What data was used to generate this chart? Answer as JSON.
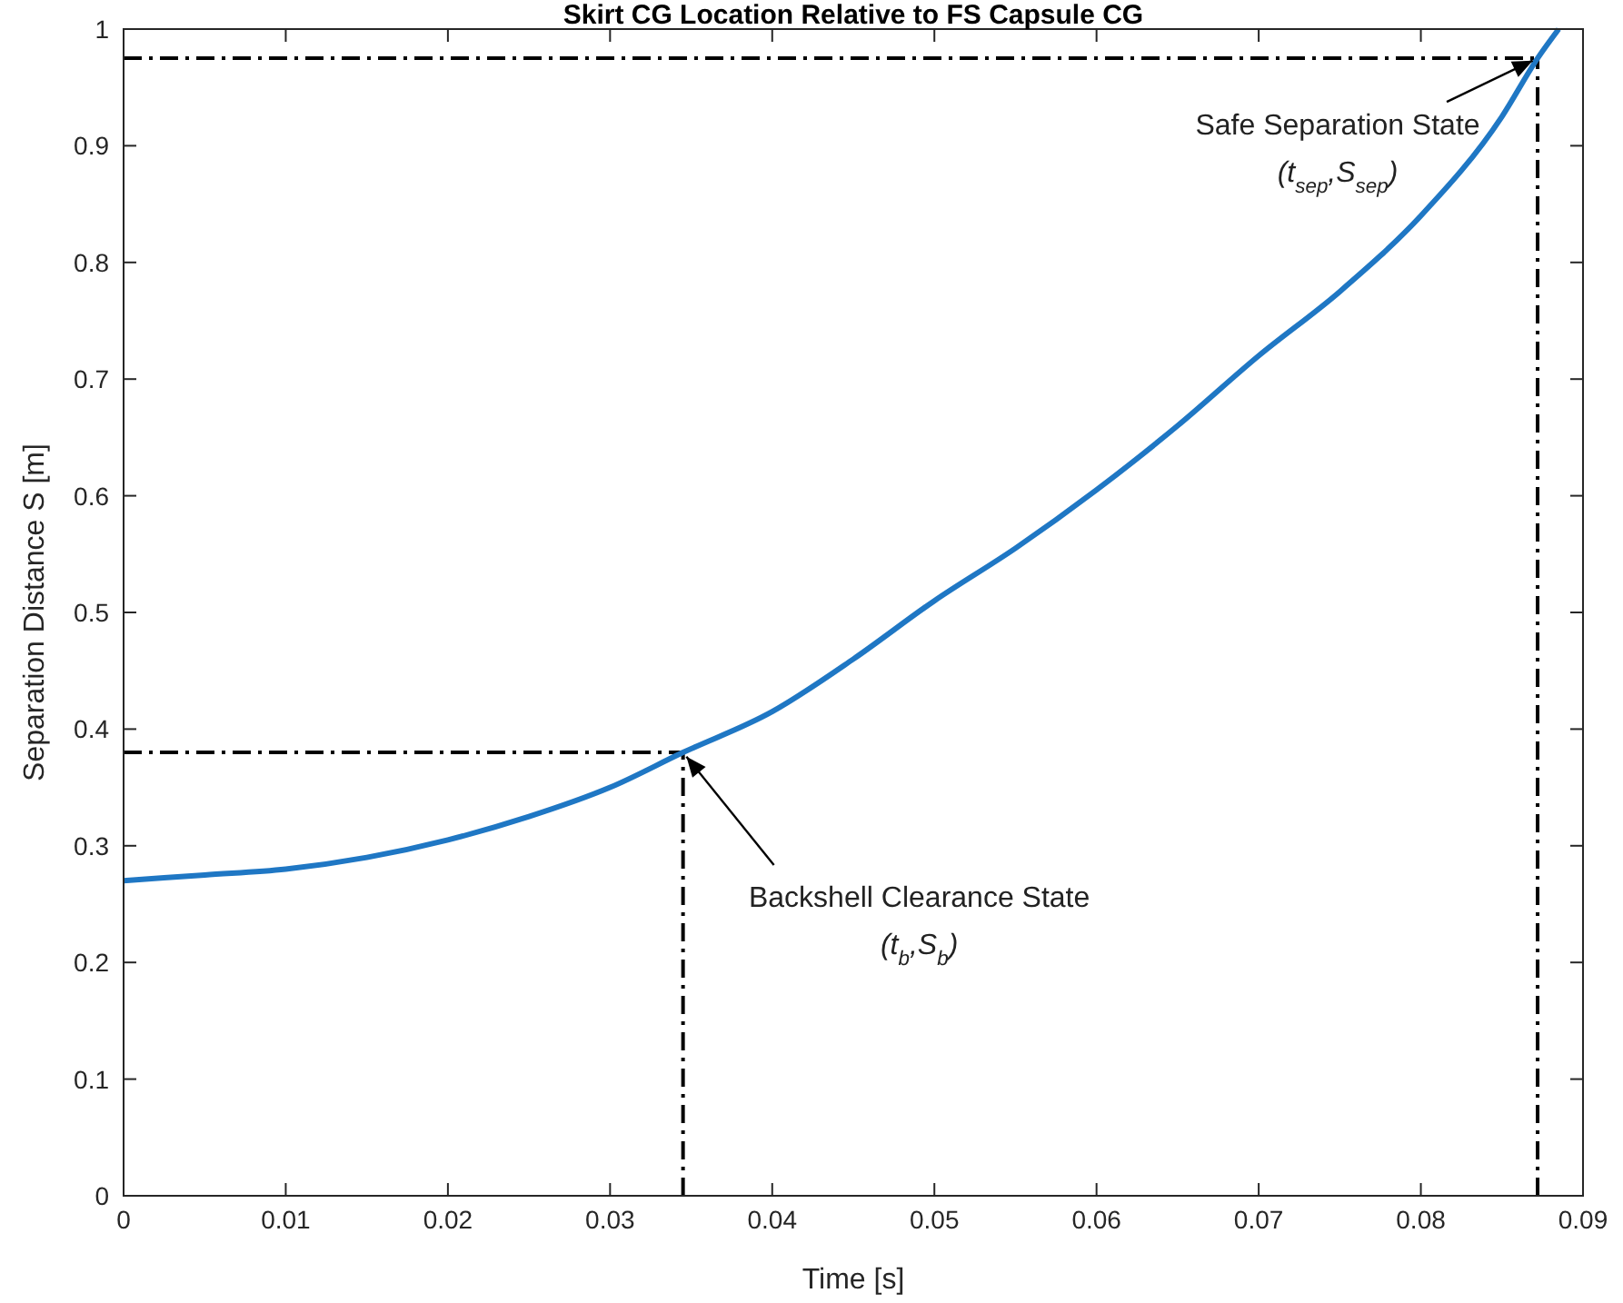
{
  "chart_data": {
    "type": "line",
    "title": "Skirt CG Location Relative to FS Capsule CG",
    "xlabel": "Time [s]",
    "ylabel": "Separation Distance S [m]",
    "x": [
      0,
      0.005,
      0.01,
      0.015,
      0.02,
      0.025,
      0.03,
      0.0345,
      0.04,
      0.045,
      0.05,
      0.055,
      0.06,
      0.065,
      0.07,
      0.075,
      0.08,
      0.085,
      0.0872,
      0.0885
    ],
    "series": [
      {
        "color": "#1f77c4",
        "values": [
          0.27,
          0.275,
          0.28,
          0.29,
          0.305,
          0.325,
          0.35,
          0.38,
          0.415,
          0.46,
          0.51,
          0.555,
          0.605,
          0.66,
          0.72,
          0.775,
          0.84,
          0.925,
          0.975,
          1.0
        ]
      }
    ],
    "xlim": [
      0,
      0.09
    ],
    "xticks": [
      0,
      0.01,
      0.02,
      0.03,
      0.04,
      0.05,
      0.06,
      0.07,
      0.08,
      0.09
    ],
    "ylim": [
      0,
      1
    ],
    "yticks": [
      0,
      0.1,
      0.2,
      0.3,
      0.4,
      0.5,
      0.6,
      0.7,
      0.8,
      0.9,
      1
    ],
    "grid": false,
    "marker": "none",
    "line_style": "solid",
    "ref_lines": [
      {
        "axis": "x",
        "value": 0.0345,
        "line_style": "dashed",
        "color": "#000000"
      },
      {
        "axis": "y",
        "value": 0.38,
        "line_style": "dashed",
        "color": "#000000"
      },
      {
        "axis": "x",
        "value": 0.0872,
        "line_style": "dashed",
        "color": "#000000"
      },
      {
        "axis": "y",
        "value": 0.975,
        "line_style": "dashed",
        "color": "#000000"
      }
    ],
    "annotations": [
      {
        "text": "Backshell Clearance State\n(t$_{b}$,S$_{b}$)",
        "x": 0.0345,
        "y": 0.38
      },
      {
        "text": "Safe Separation State\n(t$_{sep}$,S$_{sep}$)",
        "x": 0.0872,
        "y": 0.975
      }
    ]
  }
}
